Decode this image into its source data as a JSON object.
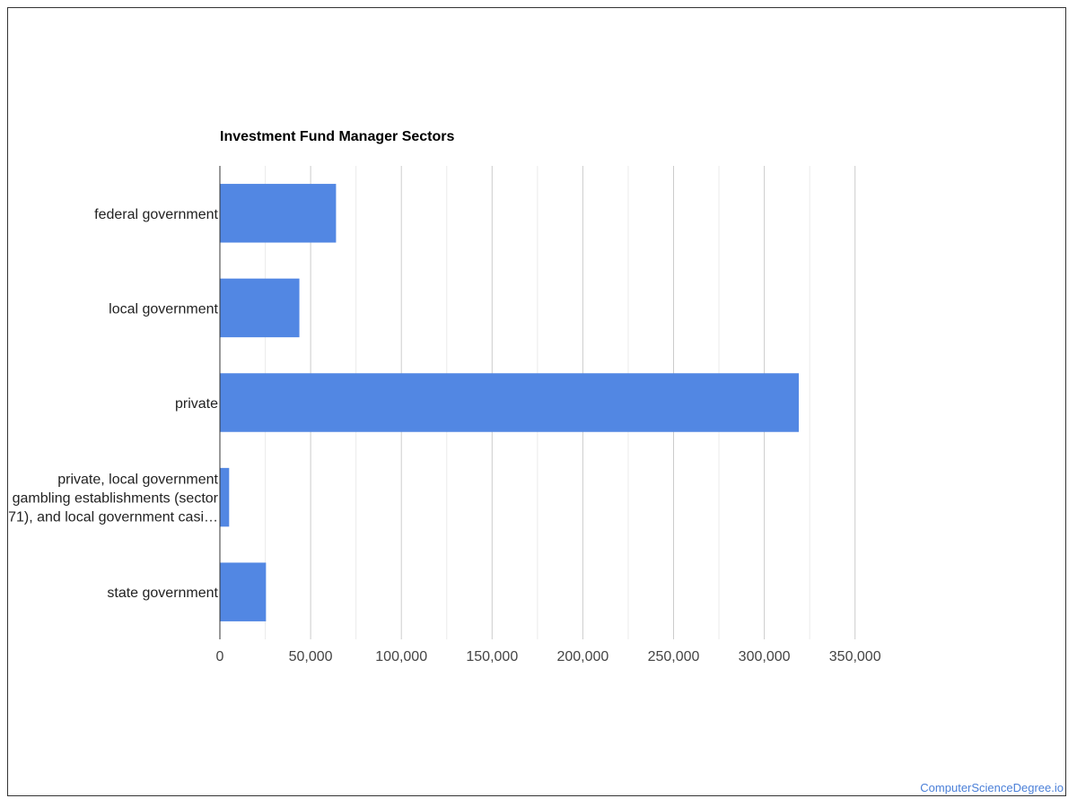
{
  "watermark": "ComputerScienceDegree.io",
  "colors": {
    "bar": "#5287e3",
    "grid_major": "#cccccc",
    "grid_minor": "#ebebeb",
    "axis": "#333333"
  },
  "chart_data": {
    "type": "bar",
    "orientation": "horizontal",
    "title": "Investment Fund Manager Sectors",
    "xlabel": "",
    "ylabel": "",
    "categories": [
      "federal government",
      "local government",
      "private",
      "private, local government gambling establishments (sector 71), and local government casi…",
      "state government"
    ],
    "category_label_lines": [
      [
        "federal government"
      ],
      [
        "local government"
      ],
      [
        "private"
      ],
      [
        "private, local government",
        "gambling establishments (sector",
        "71), and local government casi…"
      ],
      [
        "state government"
      ]
    ],
    "values": [
      64000,
      43800,
      319000,
      5100,
      25400
    ],
    "xlim": [
      0,
      350000
    ],
    "xticks": [
      0,
      50000,
      100000,
      150000,
      200000,
      250000,
      300000,
      350000
    ],
    "xtick_labels": [
      "0",
      "50,000",
      "100,000",
      "150,000",
      "200,000",
      "250,000",
      "300,000",
      "350,000"
    ],
    "grid": true,
    "legend": "none"
  }
}
